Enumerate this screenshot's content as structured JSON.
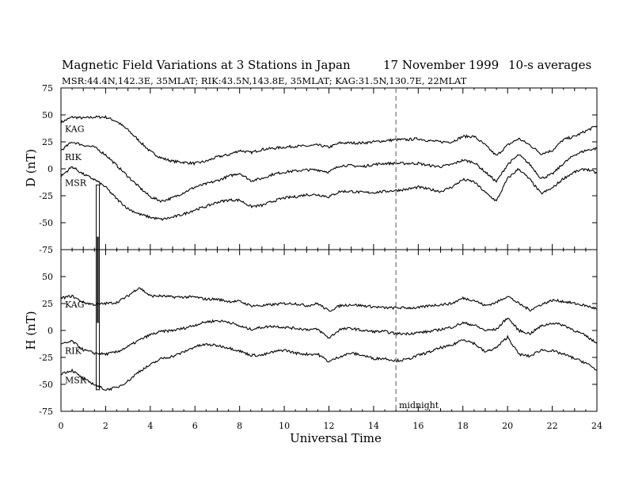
{
  "chart_data": [
    {
      "type": "line",
      "title": "Magnetic Field Variations at 3 Stations in Japan",
      "date": "17 November 1999",
      "averaging": "10-s averages",
      "subtitle": "MSR:44.4N,142.3E, 35MLAT;  RIK:43.5N,143.8E, 35MLAT;  KAG:31.5N,130.7E, 22MLAT",
      "xlabel": "Universal Time",
      "ylabel": "D (nT)",
      "xlim": [
        0,
        24
      ],
      "ylim": [
        -75,
        75
      ],
      "xticks": [
        "0",
        "2",
        "4",
        "6",
        "8",
        "10",
        "12",
        "14",
        "16",
        "18",
        "20",
        "22",
        "24"
      ],
      "yticks": [
        "-75",
        "-50",
        "-25",
        "0",
        "25",
        "50",
        "75"
      ],
      "x": [
        0,
        0.5,
        1,
        1.5,
        2,
        2.5,
        3,
        3.5,
        4,
        4.5,
        5,
        5.5,
        6,
        6.5,
        7,
        7.5,
        8,
        8.5,
        9,
        9.5,
        10,
        10.5,
        11,
        11.5,
        12,
        12.5,
        13,
        13.5,
        14,
        14.5,
        15,
        15.5,
        16,
        16.5,
        17,
        17.5,
        18,
        18.5,
        19,
        19.5,
        20,
        20.5,
        21,
        21.5,
        22,
        22.5,
        23,
        23.5,
        24
      ],
      "series": [
        {
          "name": "KAG",
          "values": [
            43,
            48,
            47,
            48,
            48,
            44,
            36,
            26,
            16,
            10,
            7,
            6,
            5,
            7,
            11,
            13,
            17,
            15,
            18,
            19,
            20,
            21,
            21,
            22,
            20,
            24,
            24,
            24,
            25,
            26,
            27,
            27,
            28,
            26,
            25,
            25,
            30,
            30,
            22,
            12,
            22,
            28,
            22,
            14,
            17,
            27,
            30,
            35,
            40
          ]
        },
        {
          "name": "RIK",
          "values": [
            17,
            25,
            22,
            20,
            13,
            3,
            -7,
            -17,
            -26,
            -30,
            -27,
            -22,
            -17,
            -14,
            -11,
            -7,
            -4,
            -11,
            -9,
            -5,
            -3,
            -2,
            -1,
            -1,
            -3,
            3,
            3,
            2,
            4,
            5,
            5,
            5,
            5,
            3,
            2,
            4,
            8,
            6,
            -3,
            -12,
            4,
            13,
            4,
            -9,
            -5,
            5,
            13,
            17,
            19
          ]
        },
        {
          "name": "MSR",
          "values": [
            -7,
            2,
            -5,
            -10,
            -17,
            -28,
            -37,
            -42,
            -45,
            -47,
            -45,
            -42,
            -38,
            -35,
            -31,
            -29,
            -29,
            -35,
            -34,
            -30,
            -27,
            -26,
            -24,
            -24,
            -26,
            -21,
            -21,
            -22,
            -22,
            -21,
            -20,
            -19,
            -17,
            -19,
            -21,
            -17,
            -10,
            -12,
            -22,
            -30,
            -9,
            0,
            -10,
            -23,
            -18,
            -9,
            -3,
            0,
            -4
          ]
        }
      ]
    },
    {
      "type": "line",
      "xlabel": "Universal Time",
      "ylabel": "H (nT)",
      "xlim": [
        0,
        24
      ],
      "ylim": [
        -75,
        75
      ],
      "xticks": [
        "0",
        "2",
        "4",
        "6",
        "8",
        "10",
        "12",
        "14",
        "16",
        "18",
        "20",
        "22",
        "24"
      ],
      "yticks": [
        "-75",
        "-50",
        "-25",
        "0",
        "25",
        "50",
        "75"
      ],
      "annotation": "midnight",
      "midnight_ut": 15,
      "x": [
        0,
        0.5,
        1,
        1.5,
        2,
        2.5,
        3,
        3.5,
        4,
        4.5,
        5,
        5.5,
        6,
        6.5,
        7,
        7.5,
        8,
        8.5,
        9,
        9.5,
        10,
        10.5,
        11,
        11.5,
        12,
        12.5,
        13,
        13.5,
        14,
        14.5,
        15,
        15.5,
        16,
        16.5,
        17,
        17.5,
        18,
        18.5,
        19,
        19.5,
        20,
        20.5,
        21,
        21.5,
        22,
        22.5,
        23,
        23.5,
        24
      ],
      "series": [
        {
          "name": "KAG",
          "values": [
            30,
            32,
            26,
            24,
            25,
            26,
            32,
            40,
            32,
            32,
            31,
            31,
            31,
            29,
            29,
            27,
            27,
            23,
            23,
            24,
            25,
            25,
            23,
            25,
            18,
            23,
            24,
            23,
            22,
            21,
            21,
            21,
            21,
            23,
            24,
            25,
            30,
            28,
            23,
            26,
            32,
            25,
            19,
            24,
            28,
            27,
            25,
            23,
            20
          ]
        },
        {
          "name": "RIK",
          "values": [
            -13,
            -10,
            -18,
            -21,
            -22,
            -20,
            -15,
            -9,
            -4,
            -1,
            0,
            2,
            5,
            8,
            9,
            8,
            4,
            1,
            3,
            4,
            3,
            2,
            1,
            1,
            -7,
            1,
            2,
            0,
            -1,
            -1,
            -3,
            -3,
            -2,
            -1,
            1,
            3,
            7,
            5,
            0,
            1,
            12,
            0,
            -3,
            4,
            7,
            5,
            0,
            -5,
            -12
          ]
        },
        {
          "name": "MSR",
          "values": [
            -40,
            -37,
            -45,
            -50,
            -55,
            -53,
            -47,
            -38,
            -32,
            -26,
            -24,
            -20,
            -15,
            -13,
            -14,
            -16,
            -19,
            -23,
            -23,
            -20,
            -18,
            -21,
            -22,
            -22,
            -29,
            -24,
            -21,
            -23,
            -26,
            -26,
            -28,
            -27,
            -23,
            -20,
            -16,
            -14,
            -8,
            -12,
            -20,
            -16,
            -6,
            -22,
            -24,
            -18,
            -19,
            -22,
            -26,
            -30,
            -37
          ]
        }
      ]
    }
  ]
}
